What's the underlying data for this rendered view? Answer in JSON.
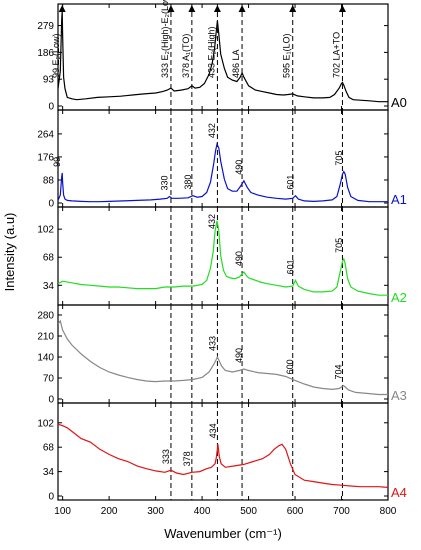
{
  "chart_data": {
    "type": "line",
    "xlabel": "Wavenumber (cm⁻¹)",
    "ylabel": "Intensity (a.u)",
    "xlim": [
      90,
      800
    ],
    "xticks": [
      100,
      200,
      300,
      400,
      500,
      600,
      700,
      800
    ],
    "reference_lines": [
      {
        "x": 333,
        "label": "333 E₂(High)-E₂(Low)"
      },
      {
        "x": 378,
        "label": "378 A₁(TO)"
      },
      {
        "x": 433,
        "label": "433 E₂(High)"
      },
      {
        "x": 486,
        "label": "486 LA"
      },
      {
        "x": 595,
        "label": "595 E₁(LO)"
      },
      {
        "x": 702,
        "label": "702 LA+TO"
      },
      {
        "x": 99,
        "label": "99 E₂(Low)"
      }
    ],
    "panels": [
      {
        "name": "A0",
        "color": "#000000",
        "ylim": [
          0,
          340
        ],
        "yticks": [
          0,
          93,
          186,
          279
        ],
        "peaks": [],
        "x": [
          90,
          95,
          98,
          99,
          100,
          102,
          105,
          110,
          120,
          130,
          150,
          175,
          200,
          225,
          250,
          275,
          300,
          315,
          325,
          333,
          340,
          355,
          370,
          378,
          385,
          395,
          405,
          415,
          422,
          427,
          430,
          433,
          436,
          440,
          448,
          455,
          465,
          475,
          482,
          486,
          490,
          500,
          515,
          530,
          545,
          560,
          575,
          585,
          595,
          605,
          620,
          640,
          660,
          675,
          685,
          695,
          700,
          702,
          705,
          710,
          716,
          725,
          740,
          760,
          780,
          800
        ],
        "values": [
          60,
          120,
          300,
          330,
          250,
          100,
          60,
          30,
          25,
          22,
          25,
          30,
          32,
          34,
          38,
          42,
          45,
          50,
          55,
          62,
          52,
          55,
          60,
          70,
          62,
          65,
          78,
          110,
          150,
          200,
          250,
          295,
          250,
          180,
          130,
          100,
          90,
          85,
          100,
          115,
          100,
          70,
          55,
          50,
          45,
          40,
          38,
          40,
          42,
          35,
          32,
          28,
          28,
          30,
          40,
          62,
          78,
          82,
          72,
          50,
          30,
          22,
          20,
          18,
          15,
          15
        ]
      },
      {
        "name": "A1",
        "color": "#0a12c8",
        "ylim": [
          0,
          340
        ],
        "yticks": [
          0,
          88,
          176,
          264
        ],
        "peaks": [
          {
            "x": 99,
            "label": "99"
          },
          {
            "x": 330,
            "label": "330"
          },
          {
            "x": 380,
            "label": "380"
          },
          {
            "x": 432,
            "label": "432"
          },
          {
            "x": 490,
            "label": "490"
          },
          {
            "x": 601,
            "label": "601"
          },
          {
            "x": 705,
            "label": "705"
          }
        ],
        "x": [
          90,
          95,
          98,
          99,
          100,
          102,
          105,
          110,
          120,
          140,
          160,
          180,
          200,
          230,
          260,
          290,
          310,
          325,
          330,
          335,
          350,
          370,
          380,
          390,
          400,
          410,
          418,
          425,
          429,
          432,
          436,
          440,
          448,
          455,
          465,
          475,
          483,
          490,
          497,
          505,
          520,
          540,
          560,
          580,
          595,
          601,
          607,
          620,
          640,
          660,
          680,
          690,
          697,
          702,
          705,
          708,
          713,
          720,
          735,
          760,
          780,
          800
        ],
        "values": [
          10,
          30,
          100,
          115,
          80,
          30,
          15,
          10,
          8,
          6,
          5,
          5,
          6,
          8,
          10,
          12,
          15,
          18,
          25,
          18,
          18,
          20,
          28,
          22,
          25,
          40,
          80,
          150,
          200,
          225,
          210,
          160,
          90,
          55,
          45,
          45,
          65,
          85,
          60,
          40,
          30,
          22,
          18,
          15,
          18,
          28,
          15,
          8,
          6,
          8,
          12,
          25,
          70,
          110,
          120,
          110,
          60,
          25,
          10,
          5,
          5,
          5
        ]
      },
      {
        "name": "A2",
        "color": "#22dd22",
        "ylim": [
          15,
          124
        ],
        "yticks": [
          34,
          68,
          102
        ],
        "peaks": [
          {
            "x": 432,
            "label": "432"
          },
          {
            "x": 490,
            "label": "490"
          },
          {
            "x": 601,
            "label": "601"
          },
          {
            "x": 705,
            "label": "705"
          }
        ],
        "x": [
          90,
          100,
          120,
          140,
          160,
          180,
          200,
          220,
          240,
          260,
          280,
          300,
          320,
          340,
          360,
          380,
          400,
          410,
          418,
          424,
          428,
          432,
          436,
          440,
          446,
          452,
          460,
          470,
          480,
          486,
          490,
          495,
          500,
          510,
          525,
          540,
          560,
          580,
          595,
          601,
          607,
          620,
          640,
          660,
          680,
          690,
          697,
          702,
          705,
          708,
          713,
          720,
          735,
          760,
          780,
          800
        ],
        "values": [
          36,
          39,
          37,
          35,
          34,
          33,
          32,
          32,
          31,
          30,
          30,
          30,
          32,
          32,
          33,
          33,
          35,
          40,
          55,
          75,
          100,
          112,
          100,
          70,
          52,
          45,
          43,
          42,
          44,
          48,
          50,
          46,
          43,
          41,
          38,
          36,
          34,
          32,
          33,
          40,
          33,
          29,
          26,
          26,
          27,
          32,
          50,
          63,
          66,
          60,
          42,
          32,
          27,
          24,
          22,
          22
        ]
      },
      {
        "name": "A3",
        "color": "#888888",
        "ylim": [
          0,
          300
        ],
        "yticks": [
          0,
          70,
          140,
          210,
          280
        ],
        "peaks": [
          {
            "x": 433,
            "label": "433"
          },
          {
            "x": 490,
            "label": "490"
          },
          {
            "x": 600,
            "label": "600"
          },
          {
            "x": 704,
            "label": "704"
          }
        ],
        "x": [
          90,
          95,
          100,
          110,
          120,
          140,
          160,
          180,
          200,
          220,
          240,
          260,
          280,
          300,
          320,
          340,
          360,
          380,
          400,
          415,
          425,
          430,
          433,
          436,
          442,
          450,
          465,
          480,
          490,
          500,
          520,
          540,
          560,
          580,
          600,
          620,
          640,
          660,
          680,
          695,
          700,
          704,
          708,
          715,
          730,
          760,
          780,
          800
        ],
        "values": [
          250,
          260,
          230,
          200,
          180,
          150,
          125,
          105,
          90,
          80,
          72,
          65,
          60,
          58,
          60,
          60,
          62,
          65,
          72,
          90,
          115,
          130,
          140,
          130,
          110,
          95,
          90,
          95,
          100,
          95,
          88,
          85,
          82,
          75,
          62,
          50,
          40,
          35,
          32,
          35,
          40,
          45,
          40,
          30,
          22,
          18,
          15,
          15
        ]
      },
      {
        "name": "A4",
        "color": "#e01414",
        "ylim": [
          0,
          124
        ],
        "yticks": [
          0,
          34,
          68,
          102
        ],
        "peaks": [
          {
            "x": 333,
            "label": "333"
          },
          {
            "x": 378,
            "label": "378"
          },
          {
            "x": 434,
            "label": "434"
          }
        ],
        "x": [
          90,
          100,
          110,
          120,
          140,
          160,
          180,
          200,
          220,
          240,
          260,
          280,
          300,
          320,
          333,
          345,
          360,
          378,
          395,
          410,
          420,
          428,
          431,
          434,
          437,
          441,
          450,
          470,
          490,
          510,
          530,
          545,
          555,
          565,
          572,
          580,
          590,
          600,
          620,
          640,
          660,
          680,
          700,
          720,
          740,
          760,
          780,
          800
        ],
        "values": [
          100,
          98,
          95,
          90,
          80,
          75,
          65,
          58,
          52,
          48,
          42,
          38,
          35,
          33,
          36,
          32,
          30,
          33,
          34,
          38,
          40,
          45,
          55,
          72,
          55,
          45,
          40,
          42,
          44,
          48,
          52,
          58,
          65,
          70,
          72,
          65,
          45,
          30,
          22,
          20,
          18,
          16,
          15,
          14,
          13,
          13,
          13,
          12
        ]
      }
    ]
  }
}
